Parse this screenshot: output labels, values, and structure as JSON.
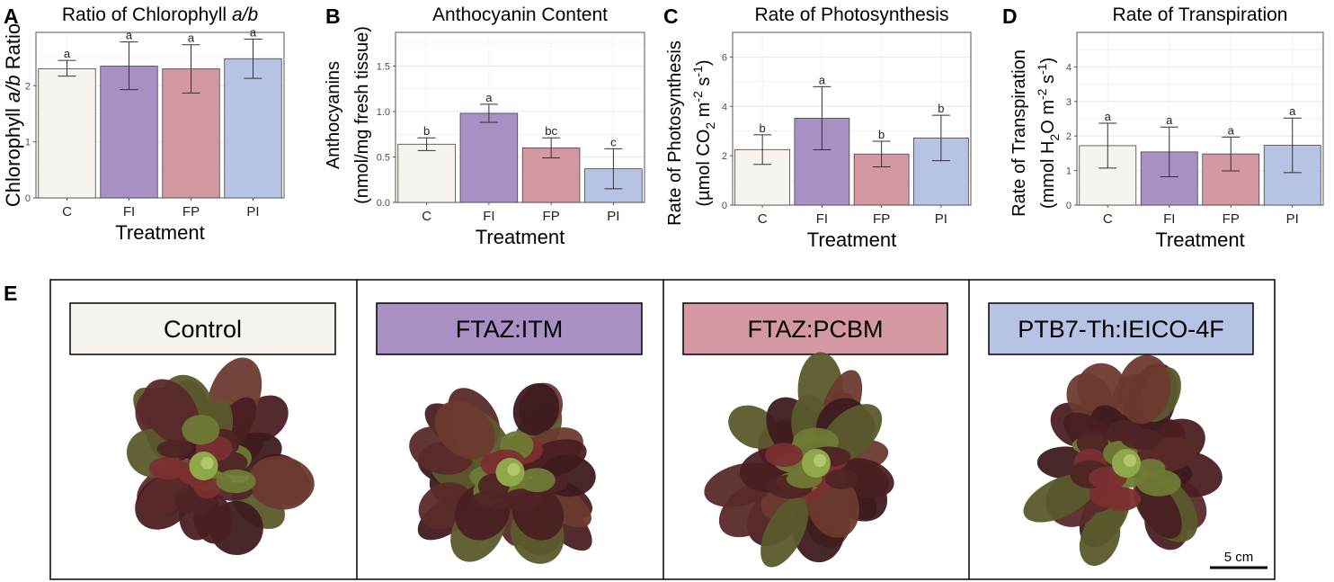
{
  "colors": {
    "C": "#f7f3ee",
    "FI": "#a88fc4",
    "FP": "#d498a2",
    "PI": "#b7c3e5"
  },
  "chart_data": [
    {
      "panel_letter": "A",
      "type": "bar",
      "title_prefix": "Ratio of Chlorophyll ",
      "title_italic": "a/b",
      "xlabel": "Treatment",
      "ylabel_parts": [
        {
          "text": "Chlorophyll "
        },
        {
          "text": "a/b",
          "style": "italic"
        },
        {
          "text": " Ratio"
        }
      ],
      "categories": [
        "C",
        "FI",
        "FP",
        "PI"
      ],
      "values": [
        2.3,
        2.35,
        2.3,
        2.48
      ],
      "errors": [
        [
          2.17,
          2.45
        ],
        [
          1.93,
          2.78
        ],
        [
          1.87,
          2.73
        ],
        [
          2.13,
          2.83
        ]
      ],
      "letters": [
        "a",
        "a",
        "a",
        "a"
      ],
      "ylim": [
        0,
        2.95
      ],
      "yticks": [
        0,
        1,
        2
      ],
      "grid": true
    },
    {
      "panel_letter": "B",
      "type": "bar",
      "title": "Anthocyanin Content",
      "xlabel": "Treatment",
      "ylabel_lines": [
        [
          {
            "text": "Anthocyanins"
          }
        ],
        [
          {
            "text": "(nmol/mg fresh tissue)"
          }
        ]
      ],
      "categories": [
        "C",
        "FI",
        "FP",
        "PI"
      ],
      "values": [
        0.64,
        0.98,
        0.6,
        0.37
      ],
      "errors": [
        [
          0.57,
          0.71
        ],
        [
          0.88,
          1.08
        ],
        [
          0.49,
          0.71
        ],
        [
          0.15,
          0.59
        ]
      ],
      "letters": [
        "b",
        "a",
        "bc",
        "c"
      ],
      "ylim": [
        0,
        1.87
      ],
      "yticks": [
        0.0,
        0.5,
        1.0,
        1.5
      ],
      "tick_decimals": 1,
      "grid": true
    },
    {
      "panel_letter": "C",
      "type": "bar",
      "title": "Rate of Photosynthesis",
      "xlabel": "Treatment",
      "ylabel_lines": [
        [
          {
            "text": "Rate of Photosynthesis"
          }
        ],
        [
          {
            "text": "(µmol CO"
          },
          {
            "text": "2",
            "style": "sub"
          },
          {
            "text": " m"
          },
          {
            "text": "-2",
            "style": "sup"
          },
          {
            "text": " s"
          },
          {
            "text": "-1",
            "style": "sup"
          },
          {
            "text": ")"
          }
        ]
      ],
      "categories": [
        "C",
        "FI",
        "FP",
        "PI"
      ],
      "values": [
        2.25,
        3.52,
        2.07,
        2.72
      ],
      "errors": [
        [
          1.65,
          2.85
        ],
        [
          2.24,
          4.8
        ],
        [
          1.55,
          2.59
        ],
        [
          1.8,
          3.64
        ]
      ],
      "letters": [
        "b",
        "a",
        "b",
        "b"
      ],
      "ylim": [
        0,
        7.0
      ],
      "yticks": [
        0,
        2,
        4,
        6
      ],
      "grid": true
    },
    {
      "panel_letter": "D",
      "type": "bar",
      "title": "Rate of Transpiration",
      "xlabel": "Treatment",
      "ylabel_lines": [
        [
          {
            "text": "Rate of Transpiration"
          }
        ],
        [
          {
            "text": "(mmol H"
          },
          {
            "text": "2",
            "style": "sub"
          },
          {
            "text": "O m"
          },
          {
            "text": "-2",
            "style": "sup"
          },
          {
            "text": " s"
          },
          {
            "text": "-1",
            "style": "sup"
          },
          {
            "text": ")"
          }
        ]
      ],
      "categories": [
        "C",
        "FI",
        "FP",
        "PI"
      ],
      "values": [
        1.72,
        1.54,
        1.48,
        1.73
      ],
      "errors": [
        [
          1.07,
          2.37
        ],
        [
          0.82,
          2.26
        ],
        [
          0.99,
          1.97
        ],
        [
          0.94,
          2.52
        ]
      ],
      "letters": [
        "a",
        "a",
        "a",
        "a"
      ],
      "ylim": [
        0,
        5.0
      ],
      "yticks": [
        0,
        1,
        2,
        3,
        4
      ],
      "grid": true
    }
  ],
  "panel_e": {
    "letter": "E",
    "treatments": [
      {
        "key": "C",
        "label": "Control"
      },
      {
        "key": "FI",
        "label": "FTAZ:ITM"
      },
      {
        "key": "FP",
        "label": "FTAZ:PCBM"
      },
      {
        "key": "PI",
        "label": "PTB7-Th:IEICO-4F"
      }
    ],
    "scale_bar_label": "5 cm"
  }
}
